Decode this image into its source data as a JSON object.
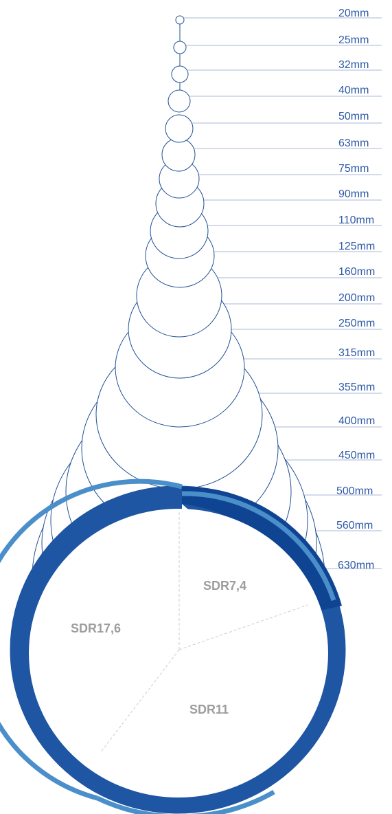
{
  "diagram": {
    "sizes": [
      "20mm",
      "25mm",
      "32mm",
      "40mm",
      "50mm",
      "63mm",
      "75mm",
      "90mm",
      "110mm",
      "125mm",
      "160mm",
      "200mm",
      "250mm",
      "315mm",
      "355mm",
      "400mm",
      "450mm",
      "500mm",
      "560mm",
      "630mm"
    ],
    "sdr_sections": [
      {
        "label": "SDR7,4"
      },
      {
        "label": "SDR11"
      },
      {
        "label": "SDR17,6"
      }
    ]
  },
  "colors": {
    "outline": "#1f4f96",
    "leader_line": "#a9b7d6",
    "label_text": "#2e5aa8",
    "pipe_outer": "#1e56a4",
    "pipe_band": "#0f4493",
    "pipe_light_band": "#4b8fca",
    "sdr_text": "#9d9d9d",
    "divider": "#cccccc"
  }
}
